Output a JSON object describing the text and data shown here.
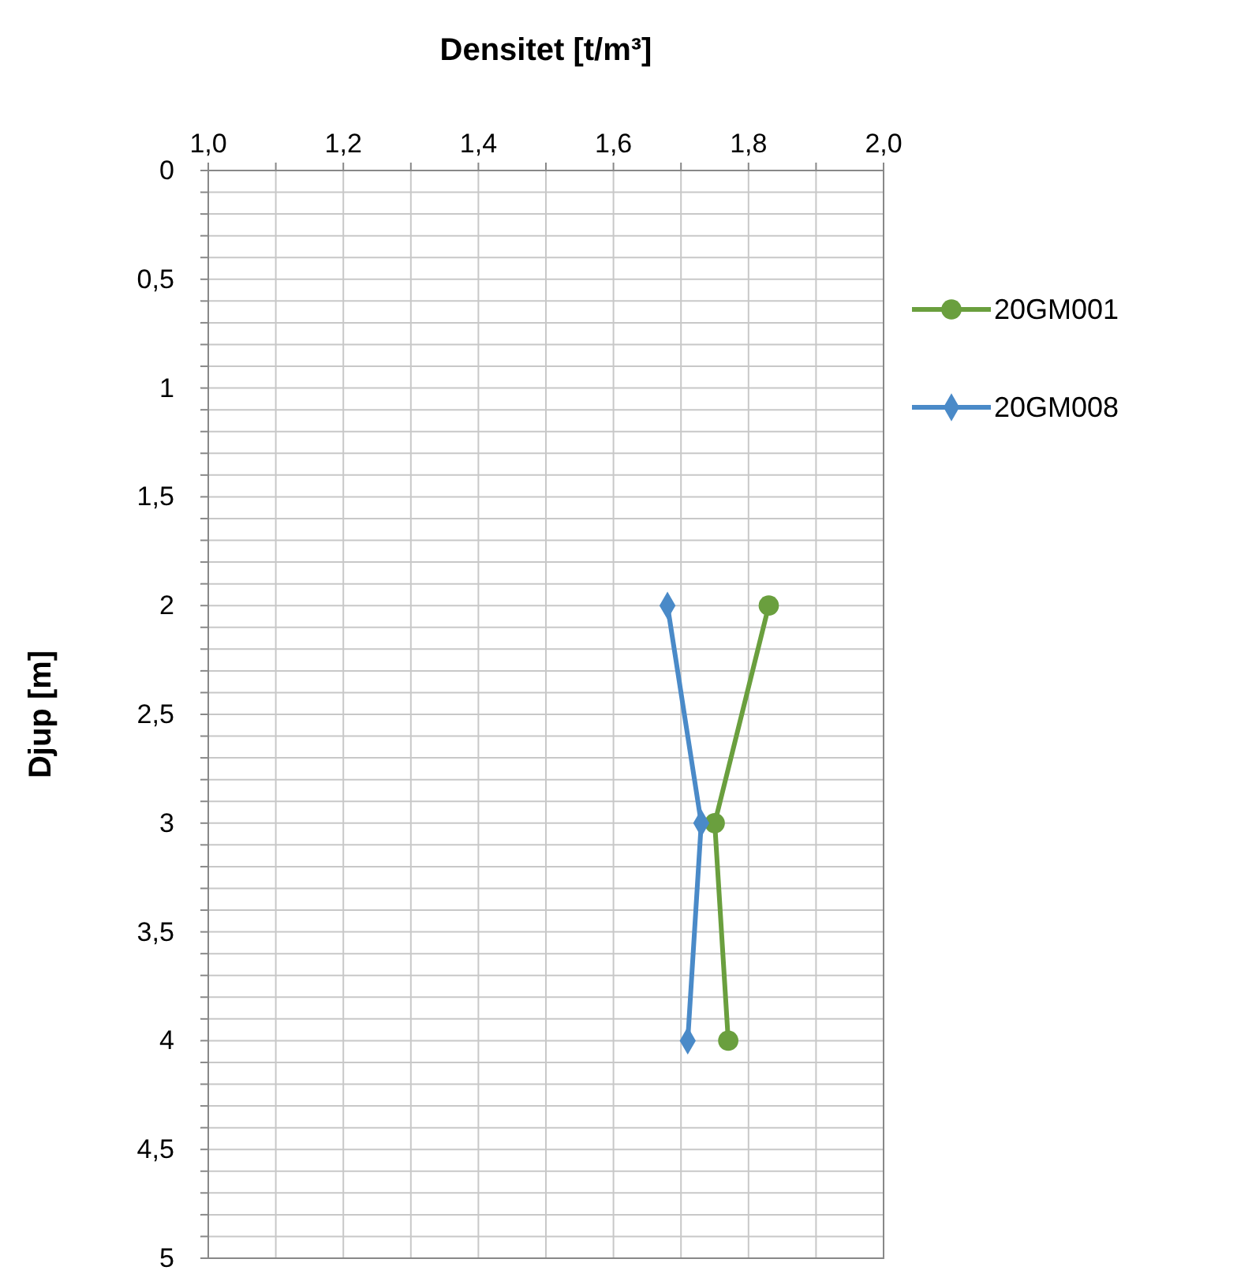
{
  "chart_data": {
    "type": "line",
    "xlabel": "Densitet [t/m³]",
    "ylabel": "Djup [m]",
    "xlim": [
      1,
      2
    ],
    "xticks": [
      {
        "value": 1,
        "label": "1,0"
      },
      {
        "value": 1.1,
        "label": null
      },
      {
        "value": 1.2,
        "label": "1,2"
      },
      {
        "value": 1.3,
        "label": null
      },
      {
        "value": 1.4,
        "label": "1,4"
      },
      {
        "value": 1.5,
        "label": null
      },
      {
        "value": 1.6,
        "label": "1,6"
      },
      {
        "value": 1.7,
        "label": null
      },
      {
        "value": 1.8,
        "label": "1,8"
      },
      {
        "value": 1.9,
        "label": null
      },
      {
        "value": 2,
        "label": "2,0"
      }
    ],
    "ylim": [
      5,
      0
    ],
    "yticks": [
      0,
      {
        "value": 0.1,
        "label": null
      },
      {
        "value": 0.2,
        "label": null
      },
      {
        "value": 0.3,
        "label": null
      },
      {
        "value": 0.4,
        "label": null
      },
      {
        "value": 0.5,
        "label": "0,5"
      },
      {
        "value": 0.6,
        "label": null
      },
      {
        "value": 0.7,
        "label": null
      },
      {
        "value": 0.8,
        "label": null
      },
      {
        "value": 0.9,
        "label": null
      },
      1,
      {
        "value": 1.1,
        "label": null
      },
      {
        "value": 1.2,
        "label": null
      },
      {
        "value": 1.3,
        "label": null
      },
      {
        "value": 1.4,
        "label": null
      },
      {
        "value": 1.5,
        "label": "1,5"
      },
      {
        "value": 1.6,
        "label": null
      },
      {
        "value": 1.7,
        "label": null
      },
      {
        "value": 1.8,
        "label": null
      },
      {
        "value": 1.9,
        "label": null
      },
      2,
      {
        "value": 2.1,
        "label": null
      },
      {
        "value": 2.2,
        "label": null
      },
      {
        "value": 2.3,
        "label": null
      },
      {
        "value": 2.4,
        "label": null
      },
      {
        "value": 2.5,
        "label": "2,5"
      },
      {
        "value": 2.6,
        "label": null
      },
      {
        "value": 2.7,
        "label": null
      },
      {
        "value": 2.8,
        "label": null
      },
      {
        "value": 2.9,
        "label": null
      },
      3,
      {
        "value": 3.1,
        "label": null
      },
      {
        "value": 3.2,
        "label": null
      },
      {
        "value": 3.3,
        "label": null
      },
      {
        "value": 3.4,
        "label": null
      },
      {
        "value": 3.5,
        "label": "3,5"
      },
      {
        "value": 3.6,
        "label": null
      },
      {
        "value": 3.7,
        "label": null
      },
      {
        "value": 3.8,
        "label": null
      },
      {
        "value": 3.9,
        "label": null
      },
      4,
      {
        "value": 4.1,
        "label": null
      },
      {
        "value": 4.2,
        "label": null
      },
      {
        "value": 4.3,
        "label": null
      },
      {
        "value": 4.4,
        "label": null
      },
      {
        "value": 4.5,
        "label": "4,5"
      },
      {
        "value": 4.6,
        "label": null
      },
      {
        "value": 4.7,
        "label": null
      },
      {
        "value": 4.8,
        "label": null
      },
      {
        "value": 4.9,
        "label": null
      },
      5
    ],
    "grid": true,
    "legend": "right",
    "series": [
      {
        "name": "20GM001",
        "color": "#6a9f3e",
        "marker": "circle",
        "x": [
          1.83,
          1.75,
          1.77
        ],
        "values": [
          2,
          3,
          4
        ]
      },
      {
        "name": "20GM008",
        "color": "#4a8ac8",
        "marker": "diamond",
        "x": [
          1.68,
          1.73,
          1.71
        ],
        "values": [
          2,
          3,
          4
        ]
      }
    ]
  }
}
